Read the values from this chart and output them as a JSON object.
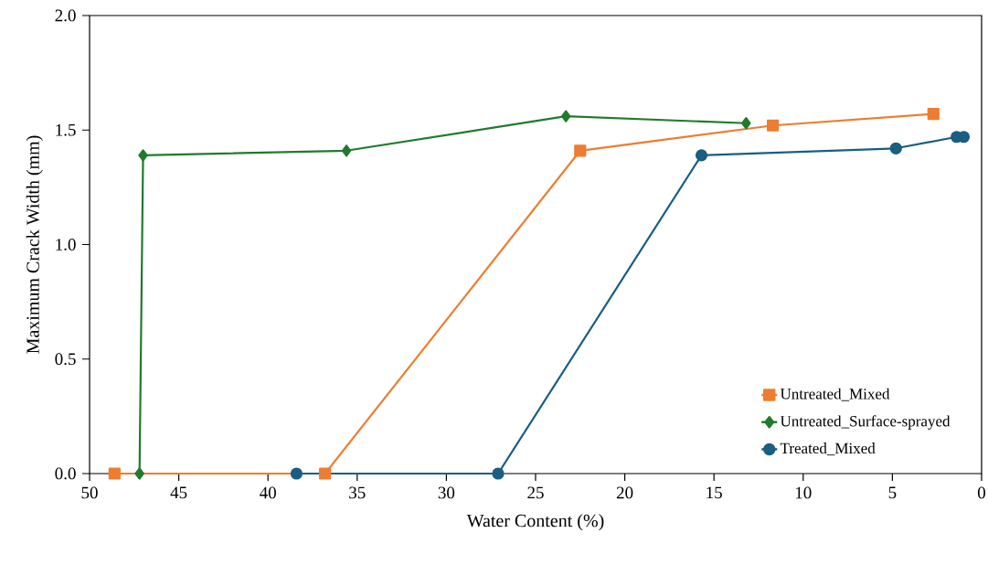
{
  "chart_data": {
    "type": "line",
    "xlabel": "Water Content (%)",
    "ylabel": "Maximum Crack Width (mm)",
    "xlim": [
      50,
      0
    ],
    "ylim": [
      0,
      2.0
    ],
    "xticks": [
      50,
      45,
      40,
      35,
      30,
      25,
      20,
      15,
      10,
      5,
      0
    ],
    "yticks": [
      {
        "value": 0,
        "label": "0.0"
      },
      {
        "value": 0.5,
        "label": "0.5"
      },
      {
        "value": 1.0,
        "label": "1.0"
      },
      {
        "value": 1.5,
        "label": "1.5"
      },
      {
        "value": 2.0,
        "label": "2.0"
      }
    ],
    "grid": false,
    "legend": "bottom right",
    "series": [
      {
        "name": "Untreated_Mixed",
        "color": "#ed7d31",
        "marker": "square",
        "x": [
          48.6,
          36.8,
          22.5,
          11.7,
          2.7
        ],
        "values": [
          0,
          0,
          1.41,
          1.52,
          1.57
        ]
      },
      {
        "name": "Untreated_Surface-sprayed",
        "color": "#217a2d",
        "marker": "diamond",
        "x": [
          47.2,
          47.0,
          35.6,
          23.3,
          13.2
        ],
        "values": [
          0,
          1.39,
          1.41,
          1.56,
          1.53
        ]
      },
      {
        "name": "Treated_Mixed",
        "color": "#1a5e82",
        "marker": "circle",
        "x": [
          38.4,
          27.1,
          15.7,
          4.8,
          1.4,
          1.0
        ],
        "values": [
          0,
          0,
          1.39,
          1.42,
          1.47,
          1.47
        ]
      }
    ]
  }
}
